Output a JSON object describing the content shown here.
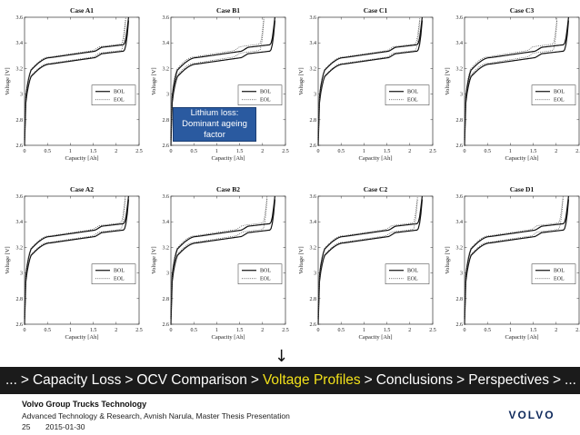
{
  "chart_data": [
    {
      "type": "line",
      "title": "Case A1",
      "xlabel": "Capacity [Ah]",
      "ylabel": "Voltage [V]",
      "xlim": [
        0,
        2.5
      ],
      "ylim": [
        2.6,
        3.6
      ],
      "xticks": [
        "0",
        "0.5",
        "1",
        "1.5",
        "2",
        "2.5"
      ],
      "yticks": [
        "2.6",
        "2.8",
        "3",
        "3.2",
        "3.4",
        "3.6"
      ],
      "legend": "center-right",
      "series": [
        {
          "name": "BOL",
          "style": "solid",
          "capacity_ah": 2.27
        },
        {
          "name": "EOL",
          "style": "dotted",
          "capacity_ah": 2.21
        }
      ]
    },
    {
      "type": "line",
      "title": "Case B1",
      "xlabel": "Capacity [Ah]",
      "ylabel": "Voltage [V]",
      "xlim": [
        0,
        2.5
      ],
      "ylim": [
        2.6,
        3.6
      ],
      "xticks": [
        "0",
        "0.5",
        "1",
        "1.5",
        "2",
        "2.5"
      ],
      "yticks": [
        "2.6",
        "2.8",
        "3",
        "3.2",
        "3.4",
        "3.6"
      ],
      "legend": "center-right",
      "series": [
        {
          "name": "BOL",
          "style": "solid",
          "capacity_ah": 2.27
        },
        {
          "name": "EOL",
          "style": "dotted",
          "capacity_ah": 2.03
        }
      ]
    },
    {
      "type": "line",
      "title": "Case C1",
      "xlabel": "Capacity [Ah]",
      "ylabel": "Voltage [V]",
      "xlim": [
        0,
        2.5
      ],
      "ylim": [
        2.6,
        3.6
      ],
      "xticks": [
        "0",
        "0.5",
        "1",
        "1.5",
        "2",
        "2.5"
      ],
      "yticks": [
        "2.6",
        "2.8",
        "3",
        "3.2",
        "3.4",
        "3.6"
      ],
      "legend": "center-right",
      "series": [
        {
          "name": "BOL",
          "style": "solid",
          "capacity_ah": 2.27
        },
        {
          "name": "EOL",
          "style": "dotted",
          "capacity_ah": 2.22
        }
      ]
    },
    {
      "type": "line",
      "title": "Case C3",
      "xlabel": "Capacity [Ah]",
      "ylabel": "Voltage [V]",
      "xlim": [
        0,
        2.5
      ],
      "ylim": [
        2.6,
        3.6
      ],
      "xticks": [
        "0",
        "0.5",
        "1",
        "1.5",
        "2",
        "2.5"
      ],
      "yticks": [
        "2.6",
        "2.8",
        "3",
        "3.2",
        "3.4",
        "3.6"
      ],
      "legend": "center-right",
      "series": [
        {
          "name": "BOL",
          "style": "solid",
          "capacity_ah": 2.27
        },
        {
          "name": "EOL",
          "style": "dotted",
          "capacity_ah": 2.02
        }
      ]
    },
    {
      "type": "line",
      "title": "Case A2",
      "xlabel": "Capacity [Ah]",
      "ylabel": "Voltage [V]",
      "xlim": [
        0,
        2.5
      ],
      "ylim": [
        2.6,
        3.6
      ],
      "xticks": [
        "0",
        "0.5",
        "1",
        "1.5",
        "2",
        "2.5"
      ],
      "yticks": [
        "2.6",
        "2.8",
        "3",
        "3.2",
        "3.4",
        "3.6"
      ],
      "legend": "center-right",
      "series": [
        {
          "name": "BOL",
          "style": "solid",
          "capacity_ah": 2.27
        },
        {
          "name": "EOL",
          "style": "dotted",
          "capacity_ah": 2.2
        }
      ]
    },
    {
      "type": "line",
      "title": "Case B2",
      "xlabel": "Capacity [Ah]",
      "ylabel": "Voltage [V]",
      "xlim": [
        0,
        2.5
      ],
      "ylim": [
        2.6,
        3.6
      ],
      "xticks": [
        "0",
        "0.5",
        "1",
        "1.5",
        "2",
        "2.5"
      ],
      "yticks": [
        "2.6",
        "2.8",
        "3",
        "3.2",
        "3.4",
        "3.6"
      ],
      "legend": "center-right",
      "series": [
        {
          "name": "BOL",
          "style": "solid",
          "capacity_ah": 2.27
        },
        {
          "name": "EOL",
          "style": "dotted",
          "capacity_ah": 2.1
        }
      ]
    },
    {
      "type": "line",
      "title": "Case C2",
      "xlabel": "Capacity [Ah]",
      "ylabel": "Voltage [V]",
      "xlim": [
        0,
        2.5
      ],
      "ylim": [
        2.6,
        3.6
      ],
      "xticks": [
        "0",
        "0.5",
        "1",
        "1.5",
        "2",
        "2.5"
      ],
      "yticks": [
        "2.6",
        "2.8",
        "3",
        "3.2",
        "3.4",
        "3.6"
      ],
      "legend": "center-right",
      "series": [
        {
          "name": "BOL",
          "style": "solid",
          "capacity_ah": 2.27
        },
        {
          "name": "EOL",
          "style": "dotted",
          "capacity_ah": 2.17
        }
      ]
    },
    {
      "type": "line",
      "title": "Case D1",
      "xlabel": "Capacity [Ah]",
      "ylabel": "Voltage [V]",
      "xlim": [
        0,
        2.5
      ],
      "ylim": [
        2.6,
        3.6
      ],
      "xticks": [
        "0",
        "0.5",
        "1",
        "1.5",
        "2",
        "2.5"
      ],
      "yticks": [
        "2.6",
        "2.8",
        "3",
        "3.2",
        "3.4",
        "3.6"
      ],
      "legend": "center-right",
      "series": [
        {
          "name": "BOL",
          "style": "solid",
          "capacity_ah": 2.27
        },
        {
          "name": "EOL",
          "style": "dotted",
          "capacity_ah": 2.15
        }
      ]
    }
  ],
  "callout": {
    "line1": "Lithium loss:",
    "line2": "Dominant ageing",
    "line3": "factor"
  },
  "arrow_glyph": "↓",
  "nav": {
    "prefix": "...",
    "items": [
      "Capacity Loss",
      "OCV Comparison",
      "Voltage Profiles",
      "Conclusions",
      "Perspectives",
      "..."
    ],
    "active_index": 2,
    "separator": ">",
    "active_color": "#f2e11a"
  },
  "footer": {
    "company": "Volvo Group Trucks Technology",
    "subtitle": "Advanced Technology & Research, Avnish Narula, Master Thesis Presentation",
    "page": "25",
    "date": "2015-01-30",
    "logo": "VOLVO"
  }
}
